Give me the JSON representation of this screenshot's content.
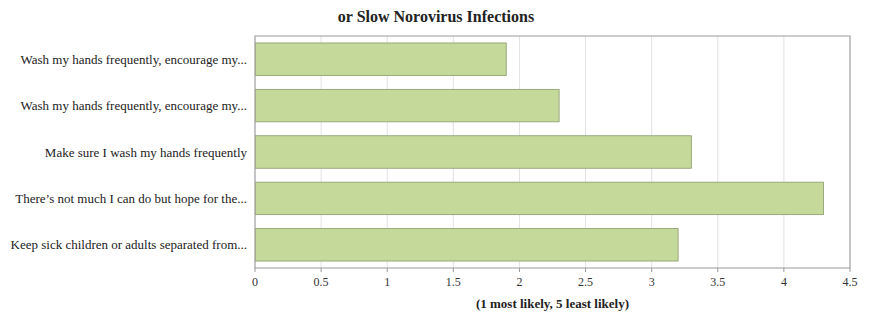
{
  "chart_data": {
    "type": "bar",
    "orientation": "horizontal",
    "title": "or Slow Norovirus Infections",
    "categories": [
      "Keep sick children or adults separated from...",
      "There’s not much I can do but hope for the...",
      "Make sure I wash my hands frequently",
      "Wash my hands frequently, encourage my...",
      "Wash my hands frequently, encourage my..."
    ],
    "values": [
      3.2,
      4.3,
      3.3,
      2.3,
      1.9
    ],
    "color": "#c5d99a",
    "xlabel": "(1 most likely, 5 least likely)",
    "xlim": [
      0,
      4.5
    ],
    "xticks": [
      0,
      0.5,
      1,
      1.5,
      2,
      2.5,
      3,
      3.5,
      4,
      4.5
    ],
    "grid": true
  }
}
